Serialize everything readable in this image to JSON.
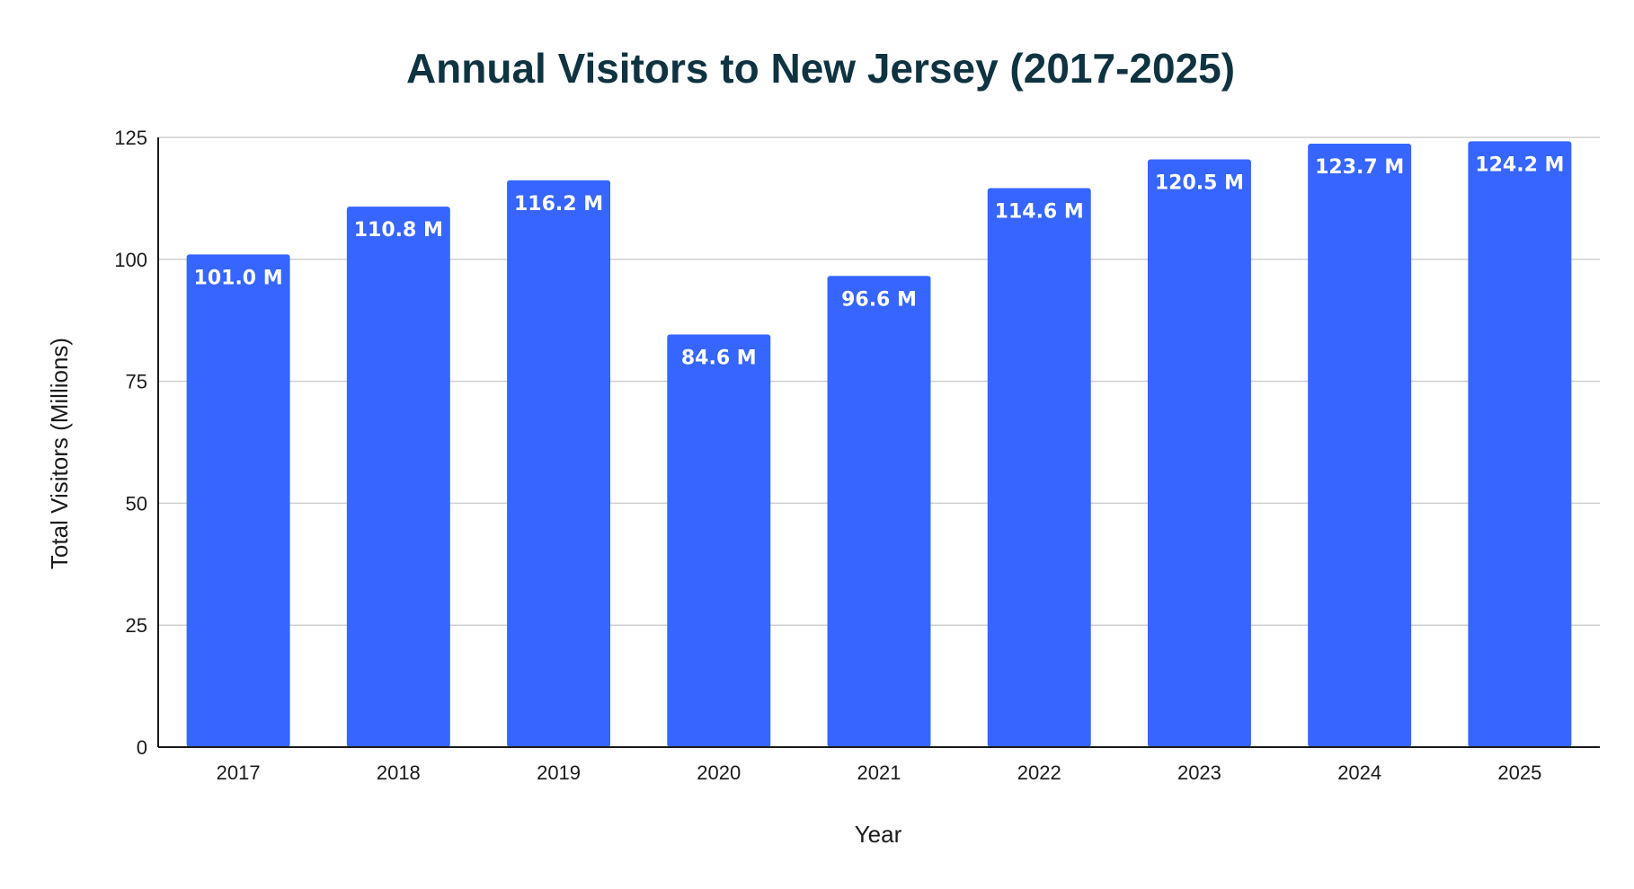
{
  "chart_data": {
    "type": "bar",
    "title": "Annual Visitors to New Jersey (2017-2025)",
    "xlabel": "Year",
    "ylabel": "Total Visitors (Millions)",
    "ylim": [
      0,
      125
    ],
    "yticks": [
      0,
      25,
      50,
      75,
      100,
      125
    ],
    "grid": true,
    "categories": [
      "2017",
      "2018",
      "2019",
      "2020",
      "2021",
      "2022",
      "2023",
      "2024",
      "2025"
    ],
    "values": [
      101.0,
      110.8,
      116.2,
      84.6,
      96.6,
      114.6,
      120.5,
      123.7,
      124.2
    ],
    "data_labels": [
      "101.0 M",
      "110.8 M",
      "116.2 M",
      "84.6 M",
      "96.6 M",
      "114.6 M",
      "120.5 M",
      "123.7 M",
      "124.2 M"
    ],
    "colors": {
      "bar": "#3666ff",
      "title": "#0f3340"
    }
  }
}
